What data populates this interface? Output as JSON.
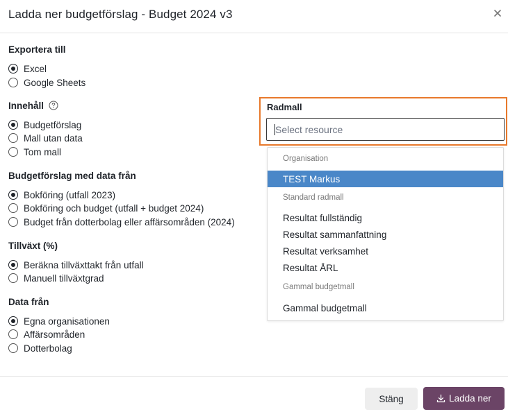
{
  "dialog": {
    "title": "Ladda ner budgetförslag - Budget 2024 v3",
    "close_icon": "close-icon"
  },
  "export": {
    "title": "Exportera till",
    "options": [
      {
        "label": "Excel",
        "checked": true
      },
      {
        "label": "Google Sheets",
        "checked": false
      }
    ]
  },
  "content": {
    "title": "Innehåll",
    "help_icon": "question-circle-icon",
    "options": [
      {
        "label": "Budgetförslag",
        "checked": true
      },
      {
        "label": "Mall utan data",
        "checked": false
      },
      {
        "label": "Tom mall",
        "checked": false
      }
    ]
  },
  "source": {
    "title": "Budgetförslag med data från",
    "options": [
      {
        "label": "Bokföring (utfall 2023)",
        "checked": true
      },
      {
        "label": "Bokföring och budget (utfall + budget 2024)",
        "checked": false
      },
      {
        "label": "Budget från dotterbolag eller affärsområden (2024)",
        "checked": false
      }
    ]
  },
  "growth": {
    "title": "Tillväxt (%)",
    "options": [
      {
        "label": "Beräkna tillväxttakt från utfall",
        "checked": true
      },
      {
        "label": "Manuell tillväxtgrad",
        "checked": false
      }
    ]
  },
  "datafrom": {
    "title": "Data från",
    "options": [
      {
        "label": "Egna organisationen",
        "checked": true
      },
      {
        "label": "Affärsområden",
        "checked": false
      },
      {
        "label": "Dotterbolag",
        "checked": false
      }
    ]
  },
  "radmall": {
    "label": "Radmall",
    "placeholder": "Select resource",
    "highlight_color": "#e8792b",
    "dropdown": {
      "groups": [
        {
          "title": "Organisation",
          "items": [
            "TEST Markus"
          ]
        },
        {
          "title": "Standard radmall",
          "items": [
            "Resultat fullständig",
            "Resultat sammanfattning",
            "Resultat verksamhet",
            "Resultat ÅRL"
          ]
        },
        {
          "title": "Gammal budgetmall",
          "items": [
            "Gammal budgetmall"
          ]
        }
      ],
      "selected": "TEST Markus",
      "selected_color": "#4a87c8"
    }
  },
  "footer": {
    "close_label": "Stäng",
    "download_label": "Ladda ner",
    "download_icon": "download-icon",
    "download_color": "#6b4466"
  }
}
